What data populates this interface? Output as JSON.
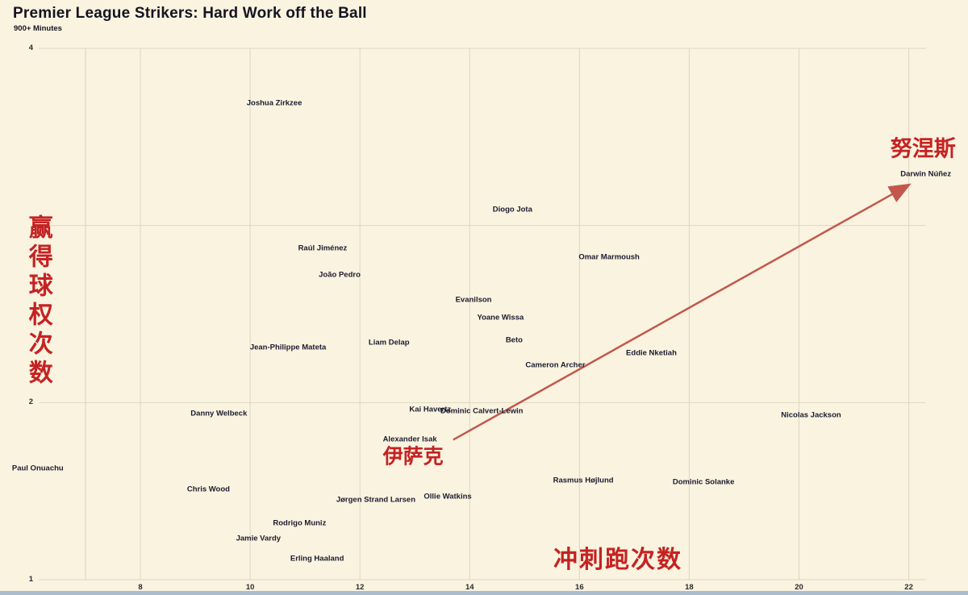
{
  "header": {
    "title": "Premier League Strikers: Hard Work off the Ball",
    "subtitle": "900+ Minutes"
  },
  "chart_data": {
    "type": "scatter",
    "title": "Premier League Strikers: Hard Work off the Ball",
    "subtitle": "900+ Minutes",
    "xlabel": "冲刺跑次数",
    "ylabel": "赢得球权次数",
    "xlim": [
      7,
      22.3
    ],
    "ylim": [
      1,
      4
    ],
    "x_ticks": [
      8,
      10,
      12,
      14,
      16,
      18,
      20,
      22
    ],
    "y_ticks": [
      1,
      2,
      3,
      4
    ],
    "y_tick_labels_shown": [
      "1",
      "2",
      "4"
    ],
    "grid": true,
    "legend": false,
    "points": [
      {
        "name": "Joshua Zirkzee",
        "x": 10.44,
        "y": 3.69
      },
      {
        "name": "Diogo Jota",
        "x": 14.78,
        "y": 3.09
      },
      {
        "name": "Raúl Jiménez",
        "x": 11.32,
        "y": 2.87
      },
      {
        "name": "João Pedro",
        "x": 11.63,
        "y": 2.72
      },
      {
        "name": "Omar Marmoush",
        "x": 16.54,
        "y": 2.82
      },
      {
        "name": "Evanilson",
        "x": 14.07,
        "y": 2.58
      },
      {
        "name": "Yoane Wissa",
        "x": 14.56,
        "y": 2.48
      },
      {
        "name": "Beto",
        "x": 14.81,
        "y": 2.35
      },
      {
        "name": "Liam Delap",
        "x": 12.53,
        "y": 2.34
      },
      {
        "name": "Jean-Philippe Mateta",
        "x": 10.69,
        "y": 2.31
      },
      {
        "name": "Eddie Nketiah",
        "x": 17.31,
        "y": 2.28
      },
      {
        "name": "Cameron Archer",
        "x": 15.56,
        "y": 2.21
      },
      {
        "name": "Kai Havertz",
        "x": 13.28,
        "y": 1.96
      },
      {
        "name": "Dominic Calvert-Lewin",
        "x": 14.22,
        "y": 1.95
      },
      {
        "name": "Danny Welbeck",
        "x": 9.43,
        "y": 1.94
      },
      {
        "name": "Nicolas Jackson",
        "x": 20.22,
        "y": 1.93
      },
      {
        "name": "Alexander Isak",
        "x": 12.91,
        "y": 1.79
      },
      {
        "name": "Paul Onuachu",
        "x": 6.13,
        "y": 1.63
      },
      {
        "name": "Rasmus Højlund",
        "x": 16.07,
        "y": 1.56
      },
      {
        "name": "Dominic Solanke",
        "x": 18.26,
        "y": 1.55
      },
      {
        "name": "Chris Wood",
        "x": 9.24,
        "y": 1.51
      },
      {
        "name": "Ollie Watkins",
        "x": 13.6,
        "y": 1.47
      },
      {
        "name": "Jørgen Strand Larsen",
        "x": 12.29,
        "y": 1.45
      },
      {
        "name": "Rodrigo Muniz",
        "x": 10.9,
        "y": 1.32
      },
      {
        "name": "Jamie Vardy",
        "x": 10.15,
        "y": 1.23
      },
      {
        "name": "Erling Haaland",
        "x": 11.22,
        "y": 1.12
      },
      {
        "name": "Darwin Núñez",
        "x": 22.31,
        "y": 3.29
      }
    ],
    "annotations": {
      "nunez": {
        "text": "努涅斯",
        "x": 22.26,
        "y": 3.43
      },
      "isak": {
        "text": "伊萨克",
        "x": 12.97,
        "y": 1.69
      },
      "xlabel_pos": {
        "x": 16.7,
        "y": 1.11
      },
      "ylabel_pos": {
        "x": 6.13,
        "y": 2.57
      },
      "arrow": {
        "x1": 13.7,
        "y1": 1.79,
        "x2": 21.95,
        "y2": 3.22
      }
    },
    "colors": {
      "background": "#f9f3e0",
      "grid": "#ded6c1",
      "spine": "#d9d1bb",
      "label_text": "#1b1b2f",
      "annotation_red": "#c52222",
      "arrow": "#c2584c",
      "bottom_strip": "#aabdce"
    }
  }
}
